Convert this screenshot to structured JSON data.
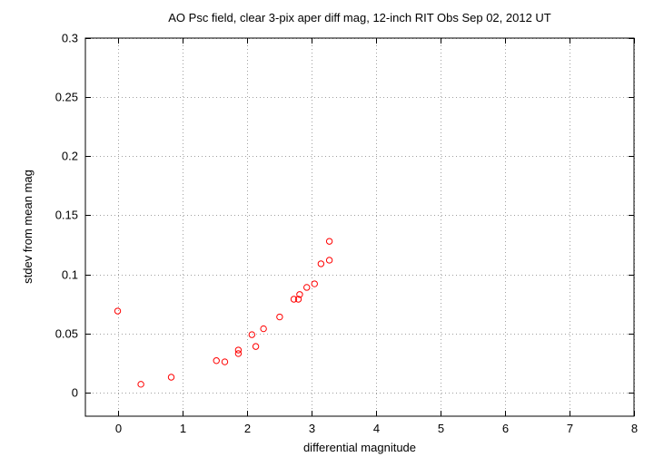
{
  "chart_data": {
    "type": "scatter",
    "title": "AO Psc field, clear 3-pix aper diff mag, 12-inch RIT Obs Sep 02, 2012 UT",
    "xlabel": "differential magnitude",
    "ylabel": "stdev from mean mag",
    "xlim": [
      -0.5,
      8
    ],
    "ylim": [
      -0.02,
      0.3
    ],
    "xticks": [
      0,
      1,
      2,
      3,
      4,
      5,
      6,
      7,
      8
    ],
    "yticks": [
      0,
      0.05,
      0.1,
      0.15,
      0.2,
      0.25,
      0.3
    ],
    "xtick_labels": [
      "0",
      "1",
      "2",
      "3",
      "4",
      "5",
      "6",
      "7",
      "8"
    ],
    "ytick_labels": [
      "0",
      "0.05",
      "0.1",
      "0.15",
      "0.2",
      "0.25",
      "0.3"
    ],
    "grid": true,
    "legend": "none",
    "marker": "open circle",
    "series": [
      {
        "color": "#ff0000",
        "points": [
          {
            "x": 0.0,
            "y": 0.069
          },
          {
            "x": 0.36,
            "y": 0.007
          },
          {
            "x": 0.83,
            "y": 0.013
          },
          {
            "x": 1.53,
            "y": 0.027
          },
          {
            "x": 1.66,
            "y": 0.026
          },
          {
            "x": 1.87,
            "y": 0.036
          },
          {
            "x": 1.87,
            "y": 0.033
          },
          {
            "x": 2.08,
            "y": 0.049
          },
          {
            "x": 2.14,
            "y": 0.039
          },
          {
            "x": 2.26,
            "y": 0.054
          },
          {
            "x": 2.51,
            "y": 0.064
          },
          {
            "x": 2.73,
            "y": 0.079
          },
          {
            "x": 2.8,
            "y": 0.079
          },
          {
            "x": 2.82,
            "y": 0.083
          },
          {
            "x": 2.93,
            "y": 0.089
          },
          {
            "x": 3.05,
            "y": 0.092
          },
          {
            "x": 3.15,
            "y": 0.109
          },
          {
            "x": 3.28,
            "y": 0.112
          },
          {
            "x": 3.28,
            "y": 0.128
          }
        ]
      }
    ]
  }
}
